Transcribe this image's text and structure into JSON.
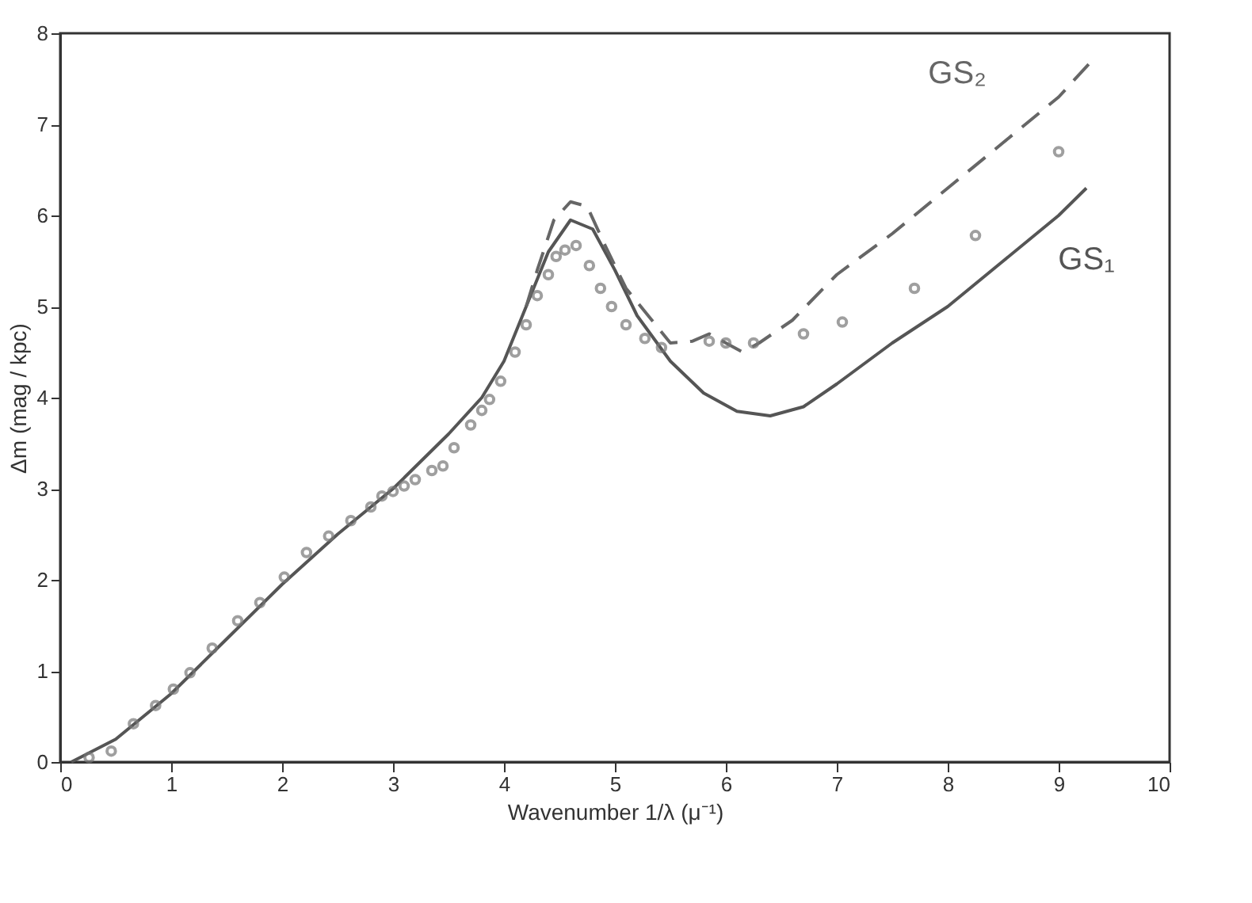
{
  "chart_data": {
    "type": "line",
    "xlabel": "Wavenumber  1/λ (μ⁻¹)",
    "ylabel": "Δm (mag / kpc)",
    "xlim": [
      0,
      10
    ],
    "ylim": [
      0,
      8
    ],
    "xticks": [
      0,
      1,
      2,
      3,
      4,
      5,
      6,
      7,
      8,
      9,
      10
    ],
    "yticks": [
      0,
      1,
      2,
      3,
      4,
      5,
      6,
      7,
      8
    ],
    "grid": false,
    "series": [
      {
        "name": "GS₁",
        "color": "#555555",
        "line_style": "solid",
        "x": [
          0.1,
          0.5,
          1,
          1.5,
          2,
          2.5,
          3,
          3.5,
          3.8,
          4.0,
          4.2,
          4.4,
          4.6,
          4.8,
          5.0,
          5.2,
          5.5,
          5.8,
          6.1,
          6.4,
          6.7,
          7.0,
          7.5,
          8.0,
          8.5,
          9.0,
          9.25
        ],
        "values": [
          0,
          0.25,
          0.75,
          1.35,
          1.95,
          2.5,
          3.0,
          3.6,
          4.0,
          4.4,
          5.0,
          5.6,
          5.95,
          5.85,
          5.4,
          4.9,
          4.4,
          4.05,
          3.85,
          3.8,
          3.9,
          4.15,
          4.6,
          5.0,
          5.5,
          6.0,
          6.3
        ]
      },
      {
        "name": "GS₂",
        "color": "#666666",
        "line_style": "dashed",
        "x": [
          4.2,
          4.3,
          4.45,
          4.6,
          4.75,
          4.9,
          5.1,
          5.3,
          5.5,
          5.7,
          5.85,
          6.0,
          6.15,
          6.3,
          6.6,
          7.0,
          7.5,
          8.0,
          8.5,
          9.0,
          9.3
        ],
        "values": [
          5.0,
          5.4,
          5.95,
          6.15,
          6.1,
          5.7,
          5.2,
          4.9,
          4.6,
          4.62,
          4.7,
          4.6,
          4.5,
          4.6,
          4.85,
          5.35,
          5.8,
          6.3,
          6.8,
          7.3,
          7.7
        ]
      },
      {
        "type": "scatter",
        "color": "#777777",
        "marker": "circle",
        "x": [
          0.26,
          0.46,
          0.66,
          0.86,
          1.02,
          1.17,
          1.37,
          1.6,
          1.8,
          2.02,
          2.22,
          2.42,
          2.62,
          2.8,
          2.9,
          3.0,
          3.1,
          3.2,
          3.35,
          3.45,
          3.55,
          3.7,
          3.8,
          3.87,
          3.97,
          4.1,
          4.2,
          4.3,
          4.4,
          4.47,
          4.55,
          4.65,
          4.77,
          4.87,
          4.97,
          5.1,
          5.27,
          5.42,
          5.85,
          6.0,
          6.25,
          6.7,
          7.05,
          7.7,
          8.25,
          9.0
        ],
        "values": [
          0.05,
          0.12,
          0.42,
          0.62,
          0.8,
          0.98,
          1.25,
          1.55,
          1.75,
          2.03,
          2.3,
          2.48,
          2.65,
          2.8,
          2.92,
          2.97,
          3.03,
          3.1,
          3.2,
          3.25,
          3.45,
          3.7,
          3.86,
          3.98,
          4.18,
          4.5,
          4.8,
          5.12,
          5.35,
          5.55,
          5.62,
          5.67,
          5.45,
          5.2,
          5.0,
          4.8,
          4.65,
          4.55,
          4.62,
          4.6,
          4.6,
          4.7,
          4.83,
          5.2,
          5.78,
          6.7
        ]
      }
    ]
  }
}
